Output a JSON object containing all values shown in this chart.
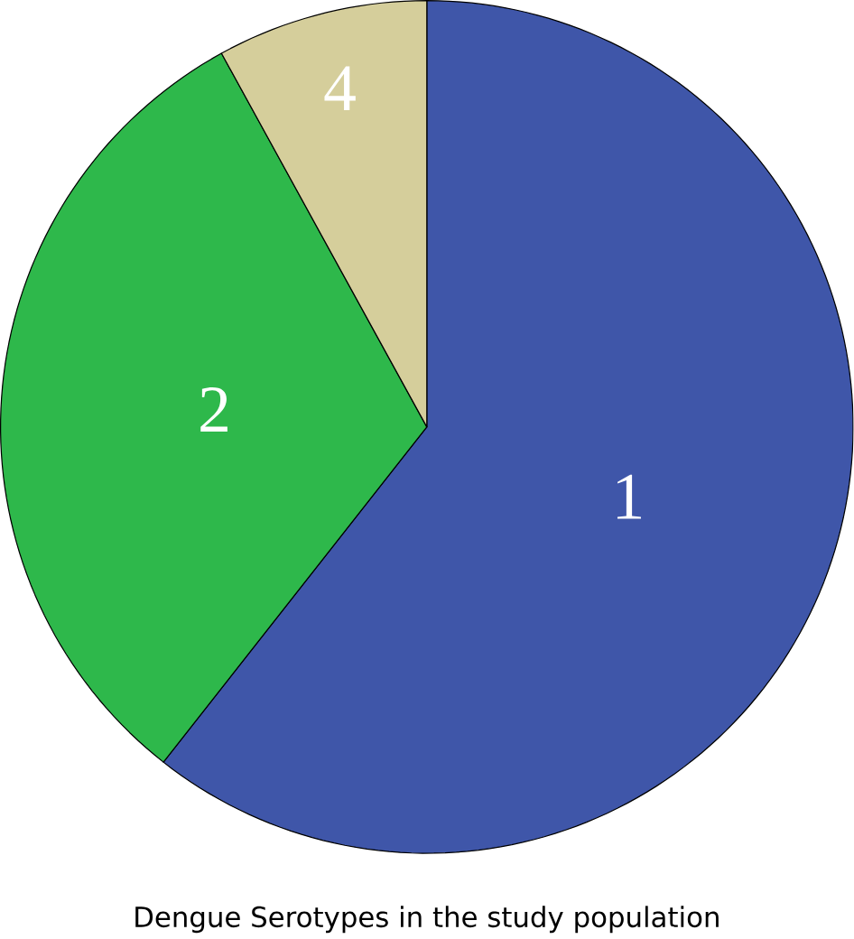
{
  "chart_data": {
    "type": "pie",
    "title": "Dengue Serotypes in the study population",
    "categories": [
      "1",
      "2",
      "4"
    ],
    "values": [
      60.6,
      31.4,
      8.0
    ],
    "colors": [
      "#3f56a9",
      "#2eb84b",
      "#d5ce9b"
    ]
  }
}
